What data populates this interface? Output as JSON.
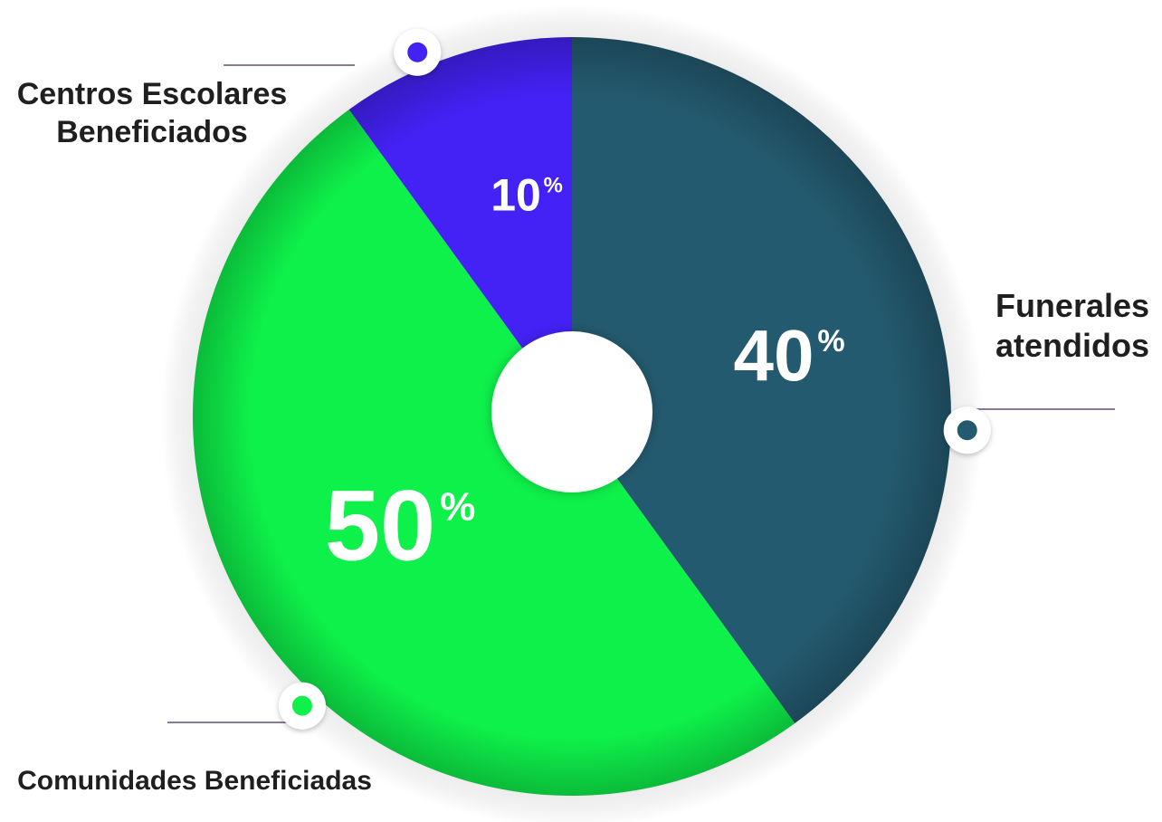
{
  "chart_data": {
    "type": "pie",
    "categories": [
      "Centros Escolares Beneficiados",
      "Funerales atendidos",
      "Comunidades Beneficiadas"
    ],
    "values": [
      10,
      40,
      50
    ],
    "value_labels": [
      "10",
      "40",
      "50"
    ],
    "unit": "%",
    "category_lines": [
      [
        "Centros Escolares",
        "Beneficiados"
      ],
      [
        "Funerales",
        "atendidos"
      ],
      [
        "Comunidades Beneficiadas"
      ]
    ],
    "colors": [
      "#4421f5",
      "#245a6f",
      "#0ef04a"
    ],
    "inner_hole": true,
    "start_angle_deg": 0,
    "direction": "clockwise"
  }
}
